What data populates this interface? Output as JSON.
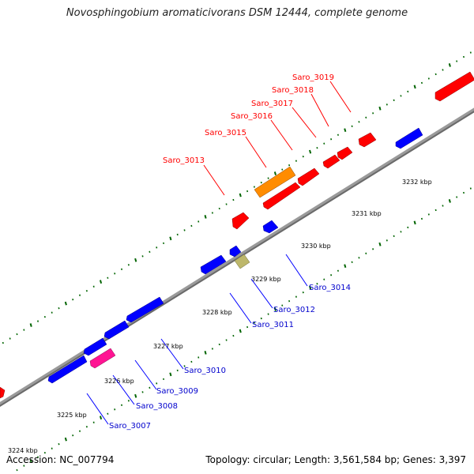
{
  "title": "Novosphingobium aromaticivorans DSM 12444, complete genome",
  "accession": "Accession: NC_007794",
  "summary": "Topology: circular; Length: 3,561,584 bp; Genes: 3,397",
  "colors": {
    "forward": "#ff0000",
    "reverse": "#0000ff",
    "highlight": "#ff8c00",
    "magenta": "#ff1493",
    "khaki": "#bdb76b",
    "backbone": "#808080",
    "tick": "#006400"
  },
  "kbp_labels": [
    "3224 kbp",
    "3225 kbp",
    "3226 kbp",
    "3227 kbp",
    "3228 kbp",
    "3229 kbp",
    "3230 kbp",
    "3231 kbp",
    "3232 kbp"
  ],
  "gene_labels_forward": [
    "Saro_3013",
    "Saro_3015",
    "Saro_3016",
    "Saro_3017",
    "Saro_3018",
    "Saro_3019"
  ],
  "gene_labels_reverse": [
    "Saro_3007",
    "Saro_3008",
    "Saro_3009",
    "Saro_3010",
    "Saro_3011",
    "Saro_3012",
    "Saro_3014"
  ]
}
